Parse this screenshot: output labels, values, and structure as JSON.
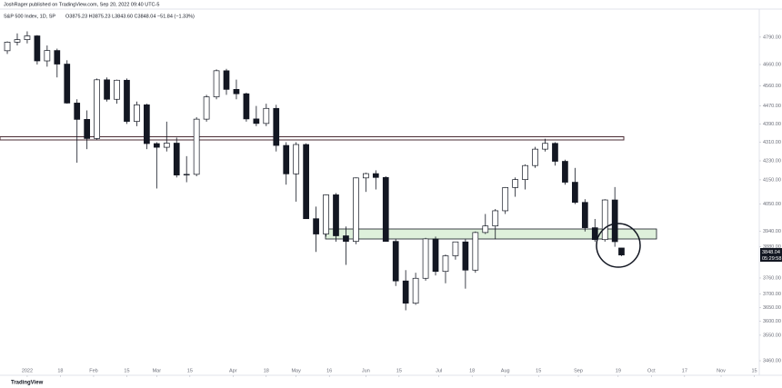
{
  "header": {
    "publisher": "JoshRager published on TradingView.com, Sep 20, 2022 09:40 UTC-5"
  },
  "footer": {
    "brand": "TradingView"
  },
  "chart_data": {
    "type": "candlestick",
    "title": "S&P 500 Index, 1D, SP",
    "legend_values": "O3875.23 H3875.23 L3843.60 C3848.04 −51.84 (−1.33%)",
    "countdown": "05:29:58",
    "log_scale": true,
    "up_color": "#ffffff",
    "down_color": "#131722",
    "x": [
      -6,
      -3,
      0,
      3,
      6,
      9,
      12,
      15,
      18,
      21,
      24,
      27,
      30,
      33,
      36,
      39,
      42,
      45,
      48,
      51,
      54,
      57,
      60,
      63,
      66,
      69,
      72,
      75,
      78,
      81,
      84,
      87,
      90,
      93,
      96,
      99,
      102,
      105,
      108,
      111,
      114,
      117,
      120,
      123,
      126,
      129,
      132,
      135,
      138,
      141,
      144,
      147,
      150,
      153,
      156,
      159,
      162,
      165,
      168,
      171,
      174,
      177,
      179
    ],
    "series": [
      {
        "open": [
          4725,
          4766,
          4778,
          4796,
          4677,
          4726,
          4662,
          4483,
          4410,
          4326,
          4589,
          4500,
          4587,
          4401,
          4475,
          4304,
          4288,
          4306,
          4170,
          4173,
          4411,
          4511,
          4631,
          4545,
          4525,
          4412,
          4392,
          4459,
          4296,
          4175,
          4300,
          3991,
          3930,
          4088,
          3923,
          3901,
          4158,
          4176,
          4160,
          3901,
          3749,
          3666,
          3759,
          3911,
          3785,
          3845,
          3899,
          3790,
          3936,
          3962,
          4023,
          4118,
          4151,
          4210,
          4280,
          4305,
          4228,
          4140,
          4057,
          3955,
          3908,
          4067,
          3875.23
        ],
        "high": [
          4770,
          4808,
          4818,
          4800,
          4750,
          4735,
          4680,
          4500,
          4450,
          4595,
          4600,
          4590,
          4595,
          4490,
          4480,
          4310,
          4400,
          4330,
          4250,
          4420,
          4520,
          4637,
          4640,
          4590,
          4530,
          4470,
          4480,
          4475,
          4310,
          4310,
          4305,
          4040,
          4090,
          4095,
          3960,
          4160,
          4180,
          4190,
          4165,
          3910,
          3790,
          3780,
          3915,
          3920,
          3850,
          3900,
          3910,
          3940,
          4010,
          4030,
          4120,
          4160,
          4215,
          4290,
          4325,
          4310,
          4235,
          4200,
          4070,
          3990,
          4070,
          4120,
          3875.23
        ],
        "low": [
          4710,
          4750,
          4760,
          4660,
          4650,
          4600,
          4480,
          4222,
          4280,
          4320,
          4490,
          4480,
          4390,
          4380,
          4280,
          4114,
          4270,
          4160,
          4140,
          4165,
          4400,
          4500,
          4520,
          4500,
          4400,
          4380,
          4380,
          4270,
          4130,
          4060,
          3990,
          3860,
          3920,
          3900,
          3810,
          3890,
          4100,
          4110,
          3900,
          3730,
          3640,
          3660,
          3750,
          3770,
          3740,
          3830,
          3720,
          3780,
          3930,
          3910,
          4010,
          4080,
          4110,
          4200,
          4270,
          4210,
          4130,
          4050,
          3940,
          3900,
          3900,
          3880,
          3843.6
        ],
        "close": [
          4766,
          4778,
          4796,
          4677,
          4726,
          4662,
          4483,
          4410,
          4326,
          4589,
          4500,
          4587,
          4401,
          4475,
          4304,
          4288,
          4306,
          4170,
          4173,
          4411,
          4511,
          4631,
          4545,
          4525,
          4412,
          4392,
          4459,
          4296,
          4175,
          4300,
          3991,
          3930,
          4088,
          3923,
          3901,
          4158,
          4176,
          4160,
          3901,
          3749,
          3666,
          3759,
          3911,
          3785,
          3845,
          3899,
          3790,
          3936,
          3962,
          4023,
          4118,
          4151,
          4210,
          4280,
          4305,
          4228,
          4140,
          4057,
          3955,
          3908,
          4067,
          3899.88,
          3848.04
        ]
      }
    ],
    "xlim": [
      -8.2,
      220.5
    ],
    "xticks": [
      {
        "value": 0,
        "label": "2022"
      },
      {
        "value": 10,
        "label": "18"
      },
      {
        "value": 20,
        "label": "Feb"
      },
      {
        "value": 30,
        "label": "15"
      },
      {
        "value": 39,
        "label": "Mar"
      },
      {
        "value": 49,
        "label": "15"
      },
      {
        "value": 62,
        "label": "Apr"
      },
      {
        "value": 72,
        "label": "18"
      },
      {
        "value": 81,
        "label": "May"
      },
      {
        "value": 91,
        "label": "16"
      },
      {
        "value": 102,
        "label": "Jun"
      },
      {
        "value": 112,
        "label": "15"
      },
      {
        "value": 124,
        "label": "Jul"
      },
      {
        "value": 134,
        "label": "18"
      },
      {
        "value": 144,
        "label": "Aug"
      },
      {
        "value": 154,
        "label": "15"
      },
      {
        "value": 166,
        "label": "Sep"
      },
      {
        "value": 178,
        "label": "19"
      },
      {
        "value": 188,
        "label": "Oct"
      },
      {
        "value": 198,
        "label": "17"
      },
      {
        "value": 209,
        "label": "Nov"
      },
      {
        "value": 219,
        "label": "15"
      }
    ],
    "ylim": [
      3438,
      4918
    ],
    "yticks": [
      {
        "value": 3460,
        "label": "3460.00"
      },
      {
        "value": 3550,
        "label": "3550.00"
      },
      {
        "value": 3600,
        "label": "3600.00"
      },
      {
        "value": 3650,
        "label": "3650.00"
      },
      {
        "value": 3700,
        "label": "3700.00"
      },
      {
        "value": 3760,
        "label": "3760.00"
      },
      {
        "value": 3880,
        "label": "3880.00"
      },
      {
        "value": 3940,
        "label": "3940.00"
      },
      {
        "value": 4050,
        "label": "4050.00"
      },
      {
        "value": 4150,
        "label": "4150.00"
      },
      {
        "value": 4230,
        "label": "4230.00"
      },
      {
        "value": 4310,
        "label": "4310.00"
      },
      {
        "value": 4390,
        "label": "4390.00"
      },
      {
        "value": 4470,
        "label": "4470.00"
      },
      {
        "value": 4560,
        "label": "4560.00"
      },
      {
        "value": 4660,
        "label": "4660.00"
      },
      {
        "value": 4790,
        "label": "4790.00"
      }
    ]
  }
}
